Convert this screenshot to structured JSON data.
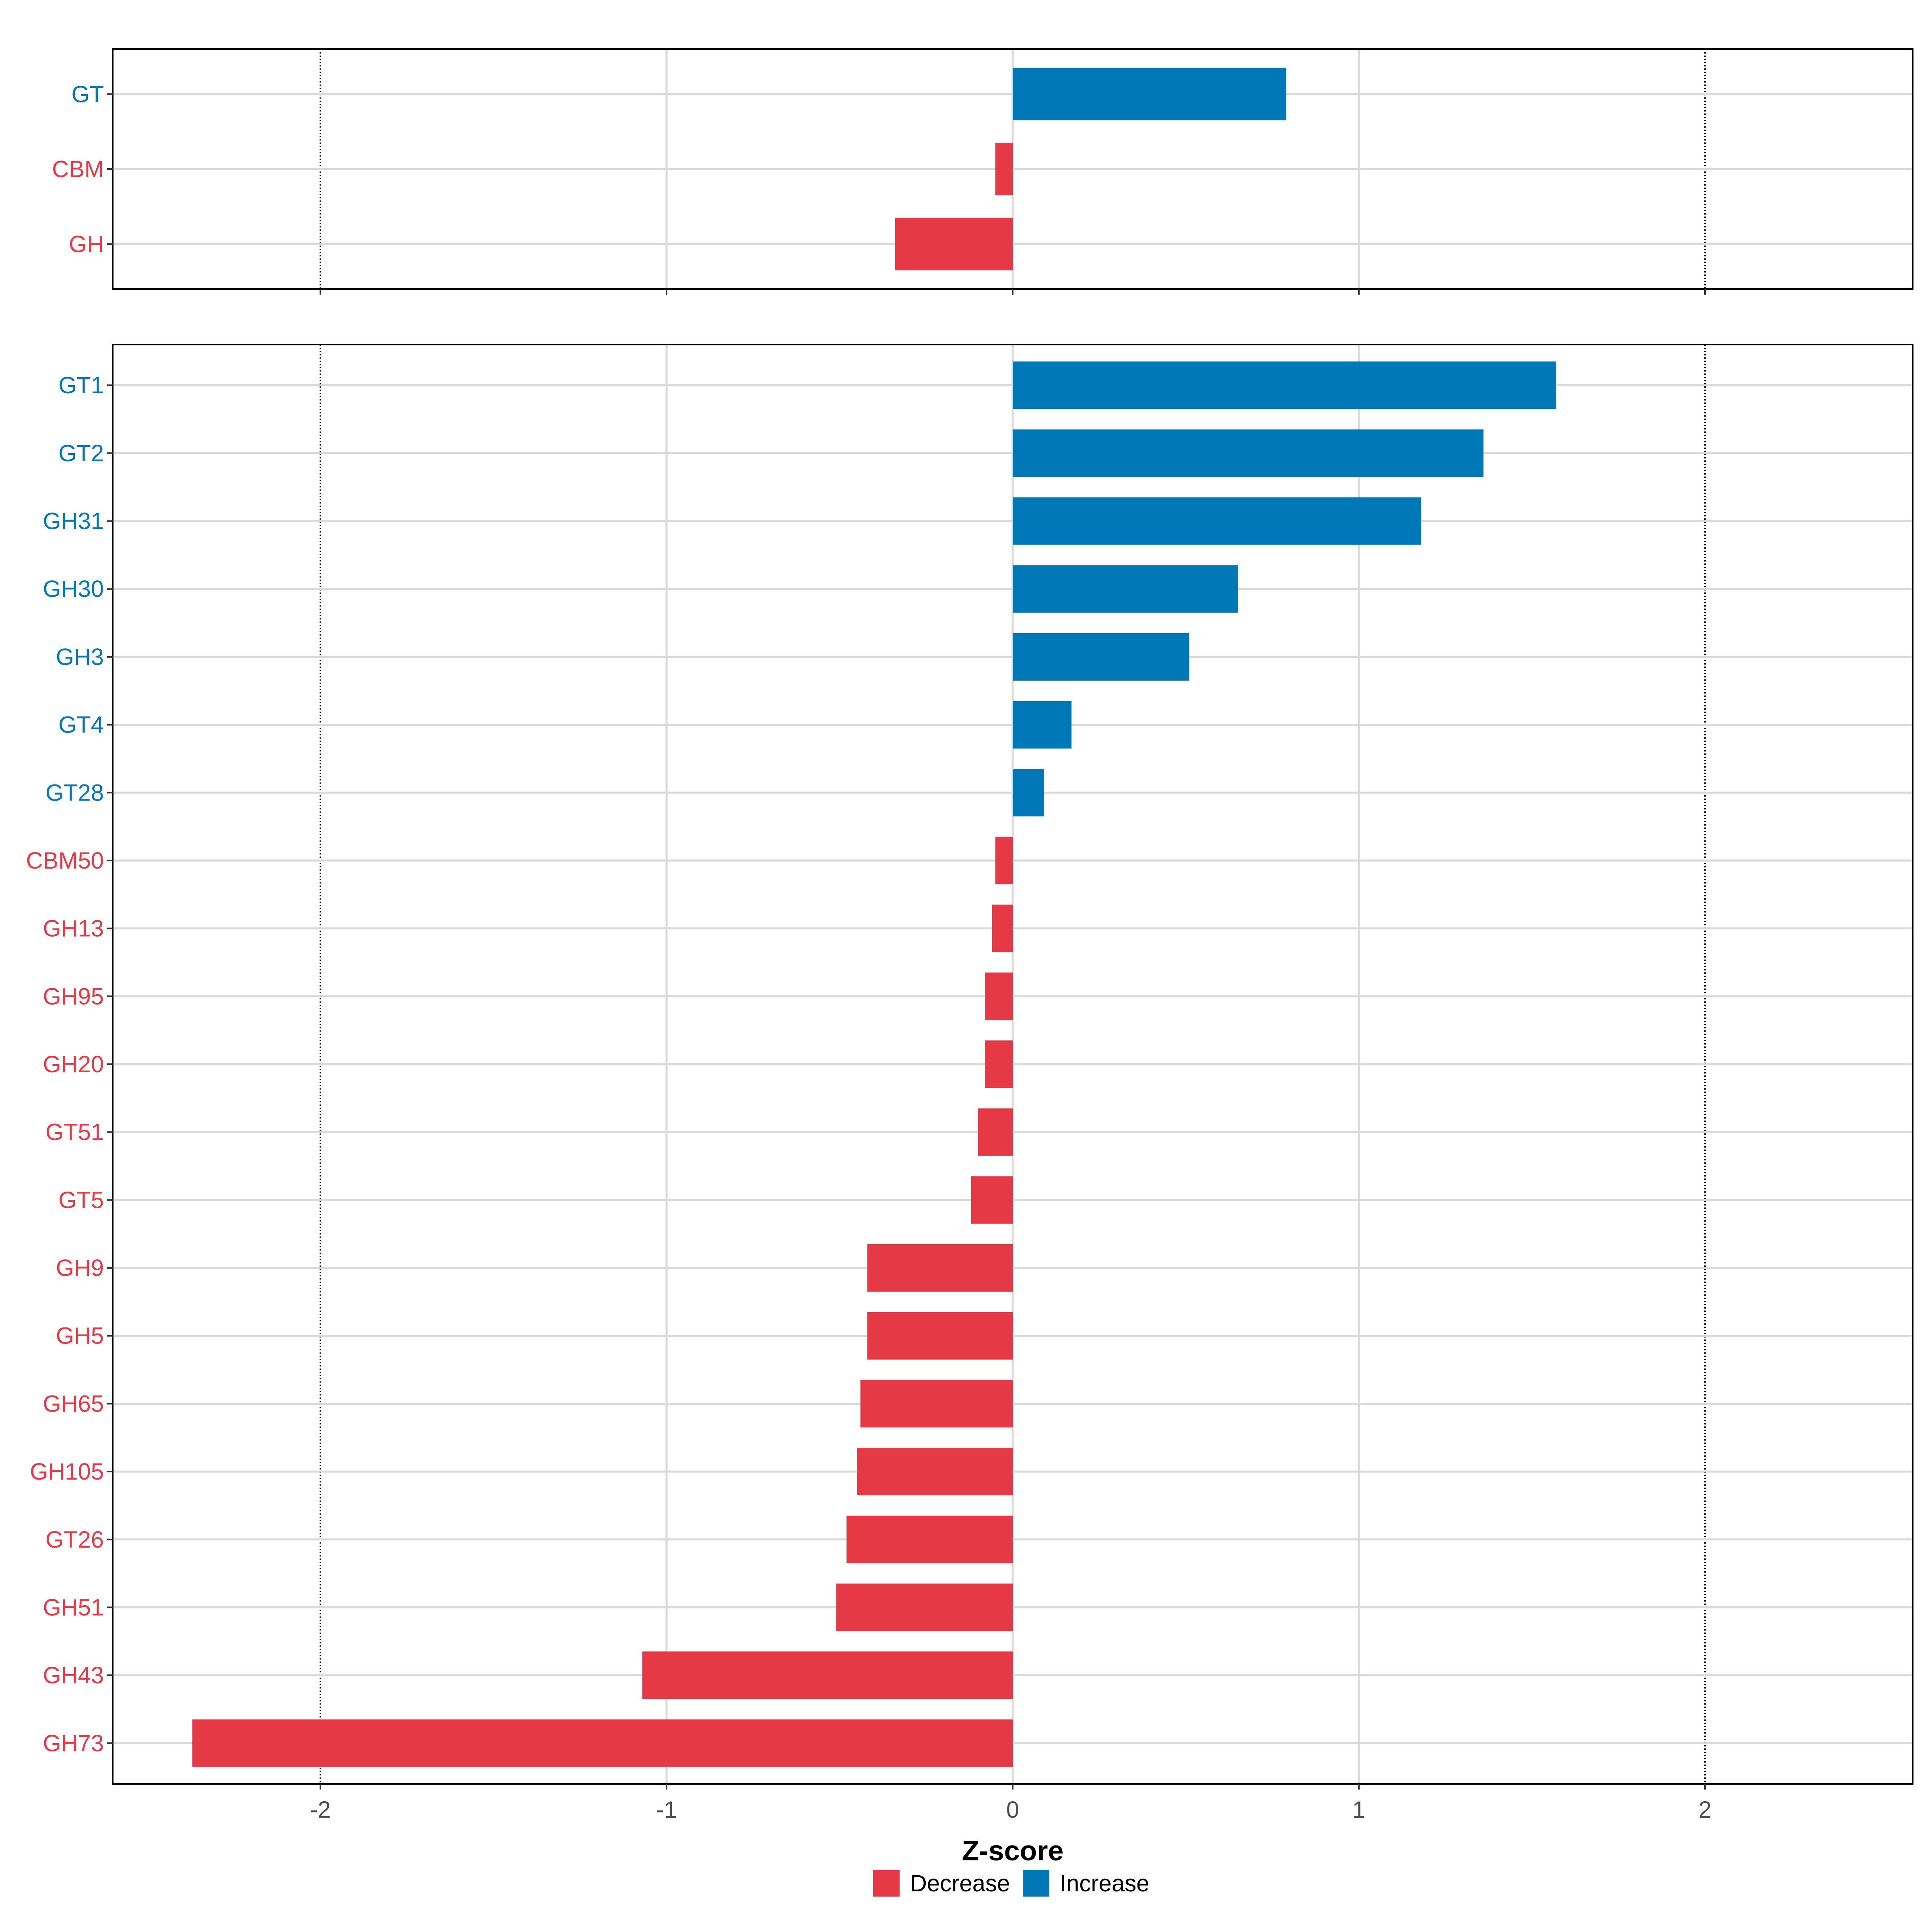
{
  "chart_data": {
    "type": "bar",
    "orientation": "horizontal",
    "xlabel": "Z-score",
    "xlim": [
      -2.6,
      2.6
    ],
    "x_ticks": [
      -2,
      -1,
      0,
      1,
      2
    ],
    "x_tick_labels": [
      "-2",
      "-1",
      "0",
      "1",
      "2"
    ],
    "reference_lines": [
      -2,
      2
    ],
    "grid": true,
    "colors": {
      "Decrease": "#e63946",
      "Increase": "#0077b6"
    },
    "legend": {
      "placement": "bottom",
      "entries": [
        "Decrease",
        "Increase"
      ]
    },
    "panels": [
      {
        "categories": [
          "GT",
          "CBM",
          "GH"
        ],
        "values": [
          0.79,
          -0.05,
          -0.34
        ],
        "groups": [
          "Increase",
          "Decrease",
          "Decrease"
        ]
      },
      {
        "categories": [
          "GT1",
          "GT2",
          "GH31",
          "GH30",
          "GH3",
          "GT4",
          "GT28",
          "CBM50",
          "GH13",
          "GH95",
          "GH20",
          "GT51",
          "GT5",
          "GH9",
          "GH5",
          "GH65",
          "GH105",
          "GT26",
          "GH51",
          "GH43",
          "GH73"
        ],
        "values": [
          1.57,
          1.36,
          1.18,
          0.65,
          0.51,
          0.17,
          0.09,
          -0.05,
          -0.06,
          -0.08,
          -0.08,
          -0.1,
          -0.12,
          -0.42,
          -0.42,
          -0.44,
          -0.45,
          -0.48,
          -0.51,
          -1.07,
          -2.37
        ],
        "groups": [
          "Increase",
          "Increase",
          "Increase",
          "Increase",
          "Increase",
          "Increase",
          "Increase",
          "Decrease",
          "Decrease",
          "Decrease",
          "Decrease",
          "Decrease",
          "Decrease",
          "Decrease",
          "Decrease",
          "Decrease",
          "Decrease",
          "Decrease",
          "Decrease",
          "Decrease",
          "Decrease"
        ]
      }
    ]
  }
}
